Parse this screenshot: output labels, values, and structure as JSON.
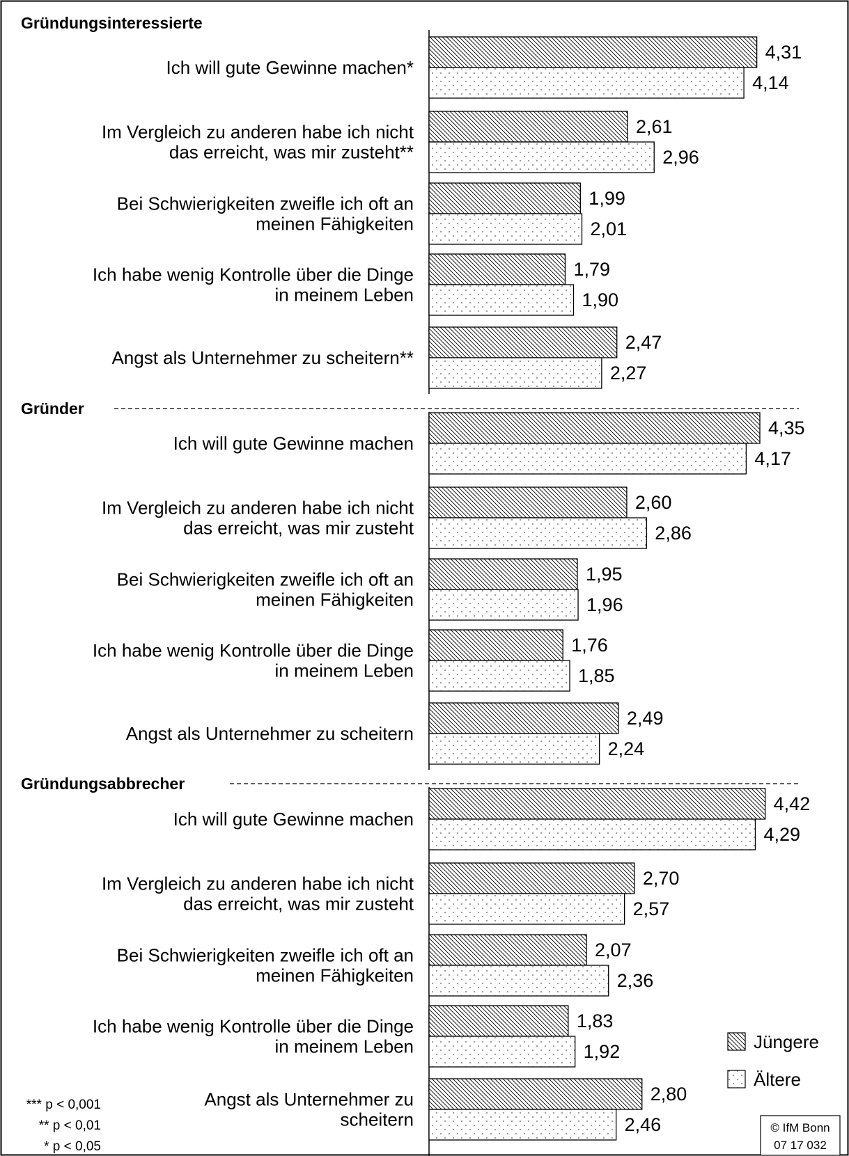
{
  "chart_data": {
    "type": "bar",
    "orientation": "horizontal",
    "value_labels": true,
    "series_names": [
      "Jüngere",
      "Ältere"
    ],
    "groups": [
      {
        "name": "Gründungsinteressierte",
        "items": [
          {
            "label": [
              "Ich will gute Gewinne machen*"
            ],
            "values": [
              4.31,
              4.14
            ],
            "value_labels": [
              "4,31",
              "4,14"
            ]
          },
          {
            "label": [
              "Im Vergleich zu anderen habe ich nicht",
              "das erreicht, was mir zusteht**"
            ],
            "values": [
              2.61,
              2.96
            ],
            "value_labels": [
              "2,61",
              "2,96"
            ]
          },
          {
            "label": [
              "Bei Schwierigkeiten zweifle ich oft an",
              "meinen Fähigkeiten"
            ],
            "values": [
              1.99,
              2.01
            ],
            "value_labels": [
              "1,99",
              "2,01"
            ]
          },
          {
            "label": [
              "Ich habe wenig Kontrolle über die Dinge",
              "in meinem Leben"
            ],
            "values": [
              1.79,
              1.9
            ],
            "value_labels": [
              "1,79",
              "1,90"
            ]
          },
          {
            "label": [
              "Angst als Unternehmer zu scheitern**"
            ],
            "values": [
              2.47,
              2.27
            ],
            "value_labels": [
              "2,47",
              "2,27"
            ]
          }
        ]
      },
      {
        "name": "Gründer",
        "items": [
          {
            "label": [
              "Ich will gute Gewinne machen"
            ],
            "values": [
              4.35,
              4.17
            ],
            "value_labels": [
              "4,35",
              "4,17"
            ]
          },
          {
            "label": [
              "Im Vergleich zu anderen habe ich nicht",
              "das erreicht, was mir zusteht"
            ],
            "values": [
              2.6,
              2.86
            ],
            "value_labels": [
              "2,60",
              "2,86"
            ]
          },
          {
            "label": [
              "Bei Schwierigkeiten zweifle ich oft an",
              "meinen Fähigkeiten"
            ],
            "values": [
              1.95,
              1.96
            ],
            "value_labels": [
              "1,95",
              "1,96"
            ]
          },
          {
            "label": [
              "Ich habe wenig Kontrolle über die Dinge",
              "in meinem Leben"
            ],
            "values": [
              1.76,
              1.85
            ],
            "value_labels": [
              "1,76",
              "1,85"
            ]
          },
          {
            "label": [
              "Angst als Unternehmer zu scheitern"
            ],
            "values": [
              2.49,
              2.24
            ],
            "value_labels": [
              "2,49",
              "2,24"
            ]
          }
        ]
      },
      {
        "name": "Gründungsabbrecher",
        "items": [
          {
            "label": [
              "Ich will gute Gewinne machen"
            ],
            "values": [
              4.42,
              4.29
            ],
            "value_labels": [
              "4,42",
              "4,29"
            ]
          },
          {
            "label": [
              "Im Vergleich zu anderen habe ich nicht",
              "das erreicht, was mir zusteht"
            ],
            "values": [
              2.7,
              2.57
            ],
            "value_labels": [
              "2,70",
              "2,57"
            ]
          },
          {
            "label": [
              "Bei Schwierigkeiten zweifle ich oft an",
              "meinen Fähigkeiten"
            ],
            "values": [
              2.07,
              2.36
            ],
            "value_labels": [
              "2,07",
              "2,36"
            ]
          },
          {
            "label": [
              "Ich habe wenig Kontrolle über die Dinge",
              "in meinem Leben"
            ],
            "values": [
              1.83,
              1.92
            ],
            "value_labels": [
              "1,83",
              "1,92"
            ]
          },
          {
            "label": [
              "Angst als Unternehmer zu",
              "scheitern"
            ],
            "values": [
              2.8,
              2.46
            ],
            "value_labels": [
              "2,80",
              "2,46"
            ]
          }
        ]
      }
    ],
    "legend": {
      "position": "bottom-right",
      "entries": [
        {
          "name": "Jüngere",
          "pattern": "hatch"
        },
        {
          "name": "Ältere",
          "pattern": "dots"
        }
      ]
    },
    "significance_notes": [
      "*** p < 0,001",
      "** p < 0,01",
      "* p < 0,05"
    ],
    "source_box": [
      "© IfM Bonn",
      "07 17 032"
    ]
  }
}
